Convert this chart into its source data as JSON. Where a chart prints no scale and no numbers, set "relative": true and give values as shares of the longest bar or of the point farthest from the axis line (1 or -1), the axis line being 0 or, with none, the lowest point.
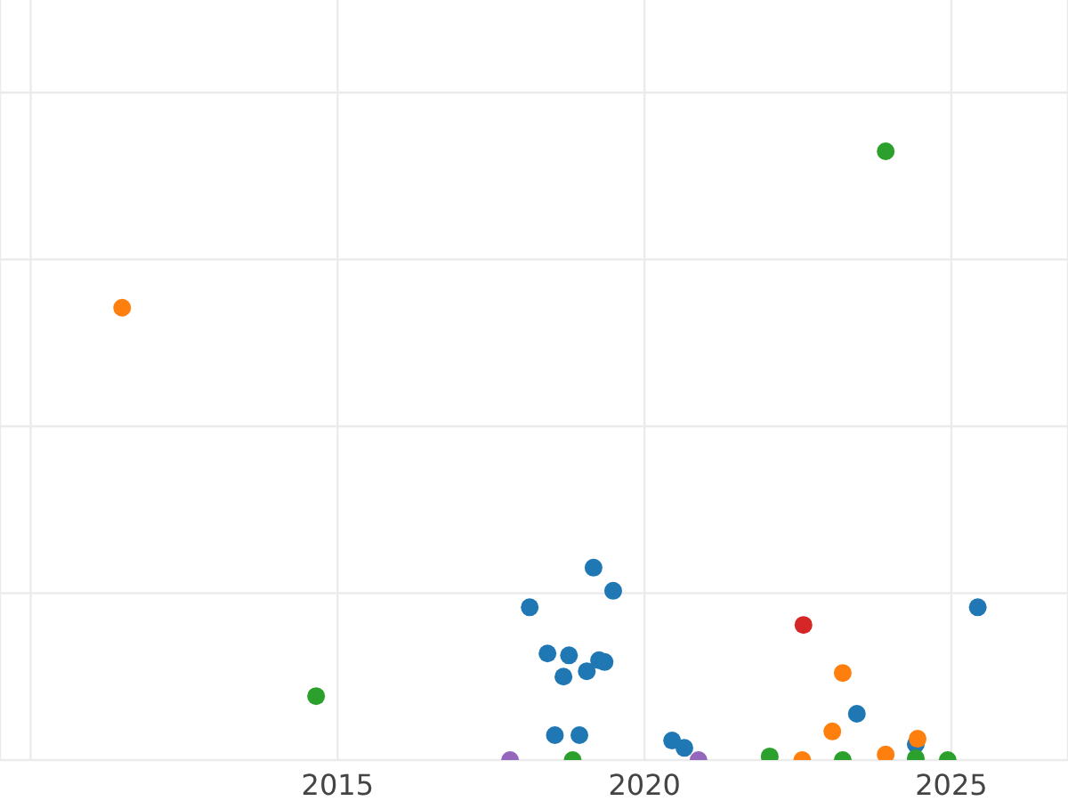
{
  "chart_data": {
    "type": "scatter",
    "relative": true,
    "xlim": [
      2009.5,
      2026.9
    ],
    "xticks": [
      {
        "value": 2010,
        "label": null
      },
      2015,
      2020,
      2025
    ],
    "grid": true,
    "legend": false,
    "marker": "circle",
    "series": [
      {
        "color": "#1f77b4",
        "x": [
          2018.13,
          2019.17,
          2019.49,
          2018.42,
          2018.77,
          2018.68,
          2019.06,
          2019.26,
          2019.35,
          2018.54,
          2018.94,
          2020.45,
          2020.65,
          2023.46,
          2024.42,
          2025.43
        ],
        "values": [
          0.251,
          0.316,
          0.278,
          0.175,
          0.172,
          0.137,
          0.146,
          0.164,
          0.161,
          0.041,
          0.041,
          0.032,
          0.02,
          0.076,
          0.026,
          0.251
        ]
      },
      {
        "color": "#ff7f0e",
        "x": [
          2011.49,
          2023.23,
          2023.06,
          2022.57,
          2023.93,
          2024.45
        ],
        "values": [
          0.743,
          0.143,
          0.047,
          0,
          0.009,
          0.035
        ]
      },
      {
        "color": "#2ca02c",
        "x": [
          2014.65,
          2023.93,
          2018.83,
          2022.04,
          2023.23,
          2024.42,
          2024.94
        ],
        "values": [
          0.105,
          1,
          0,
          0.006,
          0,
          0.003,
          0
        ]
      },
      {
        "color": "#d62728",
        "x": [
          2022.59
        ],
        "values": [
          0.222
        ]
      },
      {
        "color": "#9467bd",
        "x": [
          2017.81,
          2020.88
        ],
        "values": [
          0,
          0
        ]
      }
    ]
  }
}
